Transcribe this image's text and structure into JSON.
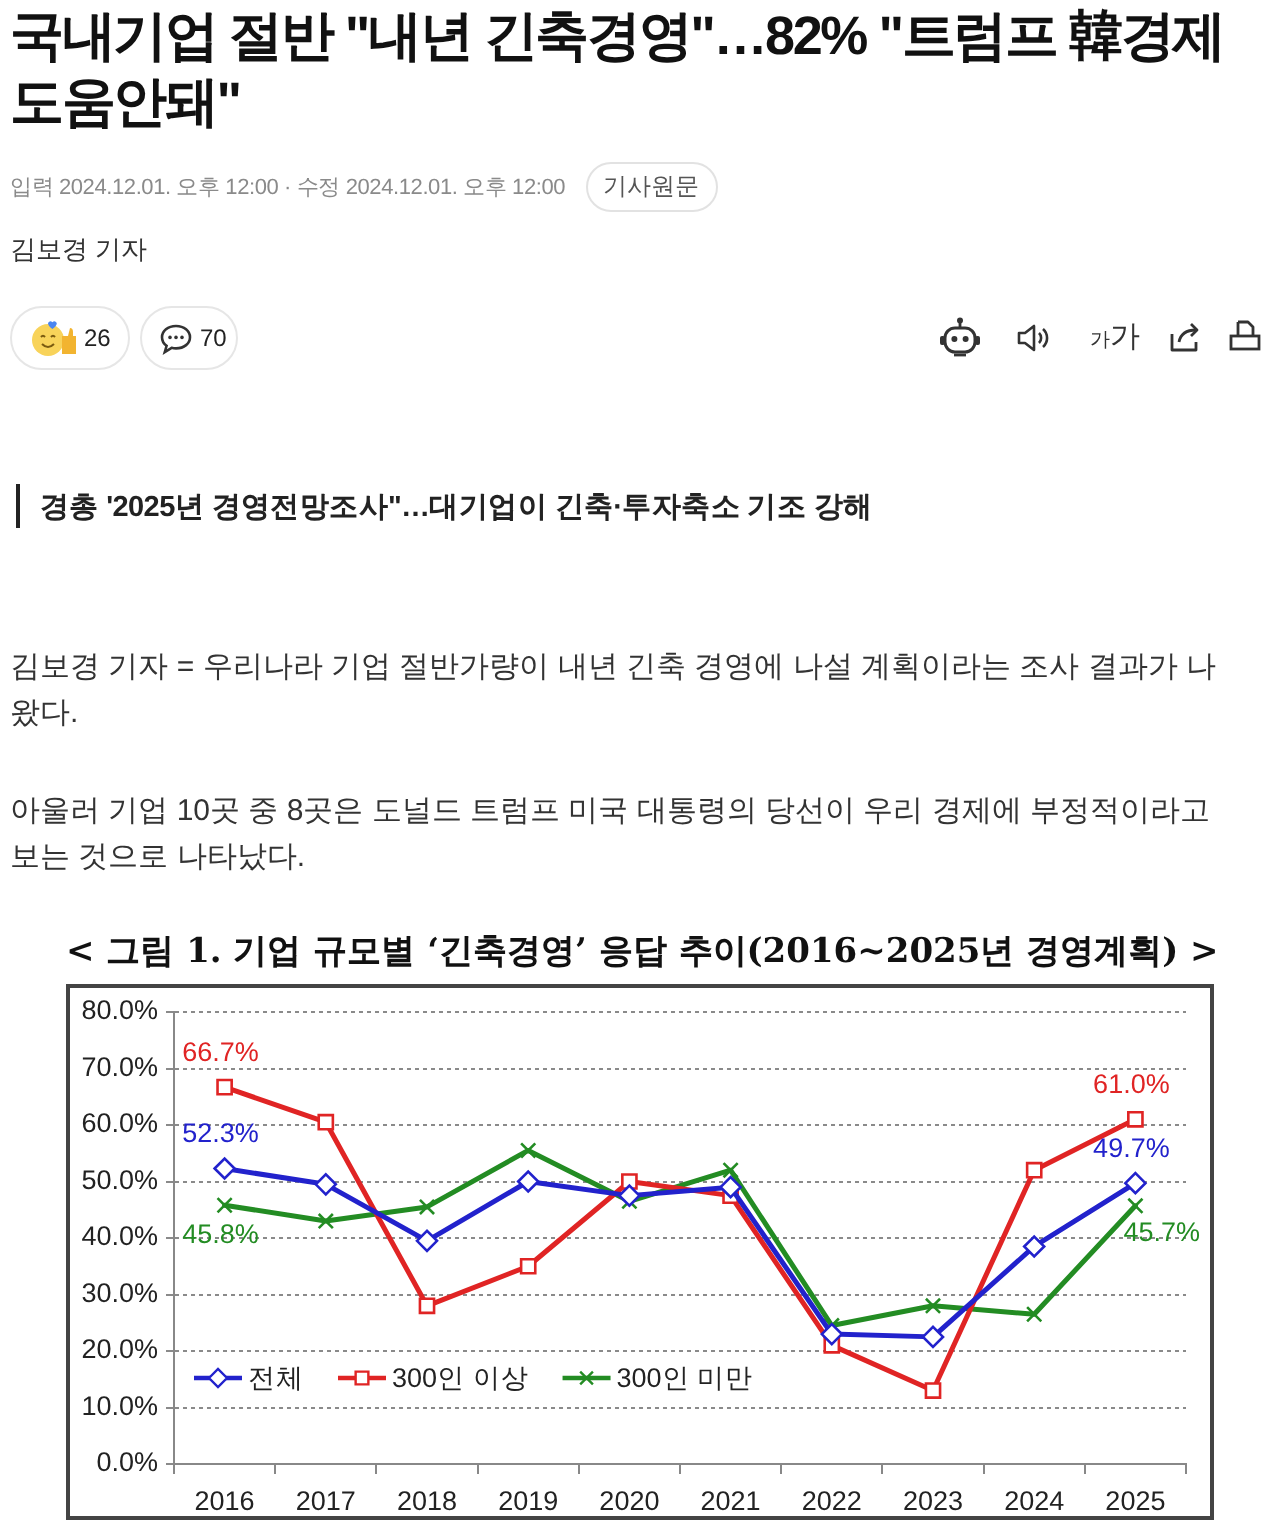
{
  "chart_data": {
    "type": "line",
    "title": "< 그림 1. 기업 규모별 ‘긴축경영’ 응답 추이(2016~2025년 경영계획) >",
    "categories": [
      "2016",
      "2017",
      "2018",
      "2019",
      "2020",
      "2021",
      "2022",
      "2023",
      "2024",
      "2025"
    ],
    "series": [
      {
        "name": "전체",
        "color": "#2222cc",
        "marker": "diamond",
        "values": [
          52.3,
          49.5,
          39.5,
          50,
          47.5,
          49,
          23,
          22.5,
          38.5,
          49.7
        ],
        "value_labels": [
          "52.3%",
          null,
          null,
          null,
          null,
          null,
          null,
          null,
          null,
          "49.7%"
        ]
      },
      {
        "name": "300인 이상",
        "color": "#e02424",
        "marker": "square",
        "values": [
          66.7,
          60.5,
          28,
          35,
          50,
          47.5,
          21,
          13,
          52,
          61.0
        ],
        "value_labels": [
          "66.7%",
          null,
          null,
          null,
          null,
          null,
          null,
          null,
          null,
          "61.0%"
        ]
      },
      {
        "name": "300인 미만",
        "color": "#238c23",
        "marker": "cross",
        "values": [
          45.8,
          43,
          45.5,
          55.5,
          46.5,
          52,
          24.5,
          28,
          26.5,
          45.7
        ],
        "value_labels": [
          "45.8%",
          null,
          null,
          null,
          null,
          null,
          null,
          null,
          null,
          "45.7%"
        ]
      }
    ],
    "ylim": [
      0,
      80
    ],
    "yticks": [
      {
        "value": 0,
        "label": "0.0%"
      },
      {
        "value": 10,
        "label": "10.0%"
      },
      {
        "value": 20,
        "label": "20.0%"
      },
      {
        "value": 30,
        "label": "30.0%"
      },
      {
        "value": 40,
        "label": "40.0%"
      },
      {
        "value": 50,
        "label": "50.0%"
      },
      {
        "value": 60,
        "label": "60.0%"
      },
      {
        "value": 70,
        "label": "70.0%"
      },
      {
        "value": 80,
        "label": "80.0%"
      }
    ],
    "grid": "y",
    "legend": "bottom left",
    "annotations": [
      "국내기업 절반 \"내년 긴축경영\"…82% \"트럼프 韓경제 도움안돼\"",
      "입력 2024.12.01. 오후 12:00 · 수정 2024.12.01. 오후 12:00",
      "기사원문",
      "김보경 기자",
      "26",
      "70",
      "가가",
      "경총 '2025년 경영전망조사\"…대기업이 긴축·투자축소 기조 강해",
      "김보경 기자 = 우리나라 기업 절반가량이 내년 긴축 경영에 나설 계획이라는 조사 결과가 나왔다.",
      "아울러 기업 10곳 중 8곳은 도널드 트럼프 미국 대통령의 당선이 우리 경제에 부정적이라고 보는 것으로 나타났다."
    ]
  }
}
